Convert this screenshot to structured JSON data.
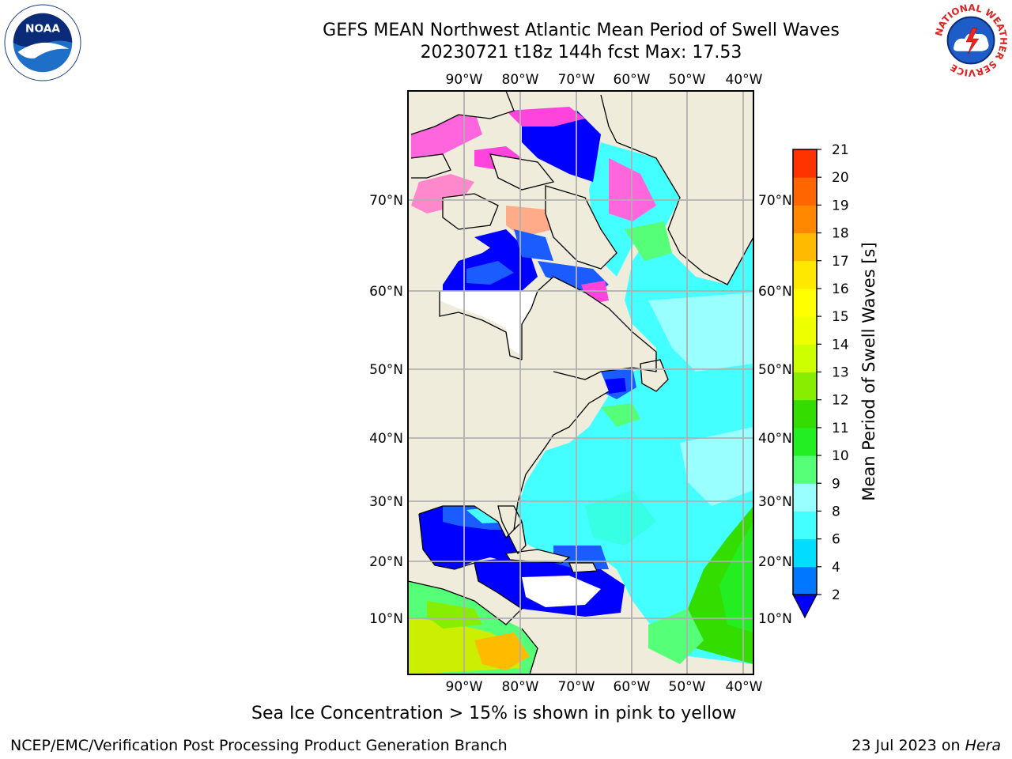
{
  "title": {
    "line1": "GEFS MEAN Northwest Atlantic Mean Period of Swell Waves",
    "line2": "20230721 t18z 144h fcst   Max: 17.53"
  },
  "map": {
    "lon_labels": [
      "90°W",
      "80°W",
      "70°W",
      "60°W",
      "50°W",
      "40°W"
    ],
    "lat_labels": [
      "70°N",
      "60°N",
      "50°N",
      "40°N",
      "30°N",
      "20°N",
      "10°N"
    ],
    "colors": {
      "land": "#efecdc",
      "gridlines": "#b0b0b0",
      "ocean_low": "#0000ff",
      "ocean_cyan": "#44ffff",
      "ocean_light": "#99ffff",
      "ice": "#ff44dd"
    }
  },
  "colorbar": {
    "label": "Mean Period of Swell Waves [s]",
    "ticks": [
      "2",
      "4",
      "6",
      "8",
      "9",
      "10",
      "11",
      "12",
      "13",
      "14",
      "15",
      "16",
      "17",
      "18",
      "19",
      "20",
      "21"
    ],
    "colors": [
      "#0077ff",
      "#00ddff",
      "#44ffff",
      "#99ffff",
      "#55ff77",
      "#22ee22",
      "#33dd00",
      "#88ee00",
      "#ccff00",
      "#eeff00",
      "#ffff00",
      "#ffe800",
      "#ffbb00",
      "#ff8800",
      "#ff6600",
      "#ff3300"
    ],
    "under_color": "#0000ff"
  },
  "note": "Sea Ice Concentration > 15% is shown in pink to yellow",
  "footer": {
    "left": "NCEP/EMC/Verification Post Processing Product Generation Branch",
    "right_prefix": "23 Jul 2023 on ",
    "right_machine": "Hera"
  },
  "logos": {
    "noaa": "NOAA",
    "nws_ring": "NATIONAL WEATHER SERVICE"
  }
}
